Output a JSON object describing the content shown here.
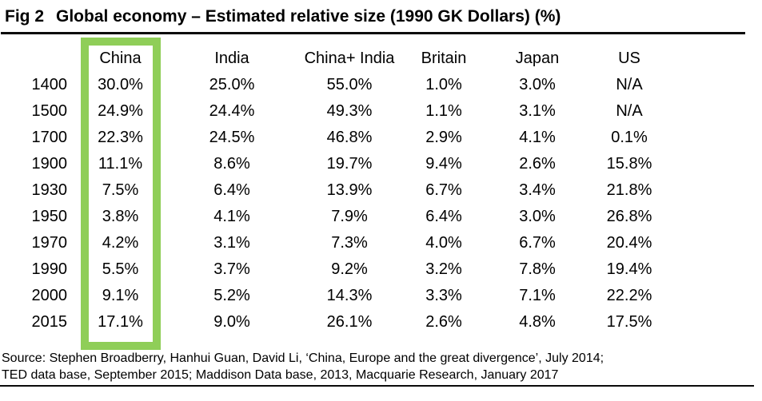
{
  "title": {
    "fig_label": "Fig 2",
    "text": "Global economy – Estimated relative size (1990 GK Dollars) (%)"
  },
  "highlight": {
    "color": "#8FCE58",
    "highlighted_column": "China"
  },
  "chart_data": {
    "type": "table",
    "title": "Global economy – Estimated relative size (1990 GK Dollars) (%)",
    "columns": [
      "",
      "China",
      "India",
      "China+ India",
      "Britain",
      "Japan",
      "US"
    ],
    "rows": [
      [
        "1400",
        "30.0%",
        "25.0%",
        "55.0%",
        "1.0%",
        "3.0%",
        "N/A"
      ],
      [
        "1500",
        "24.9%",
        "24.4%",
        "49.3%",
        "1.1%",
        "3.1%",
        "N/A"
      ],
      [
        "1700",
        "22.3%",
        "24.5%",
        "46.8%",
        "2.9%",
        "4.1%",
        "0.1%"
      ],
      [
        "1900",
        "11.1%",
        "8.6%",
        "19.7%",
        "9.4%",
        "2.6%",
        "15.8%"
      ],
      [
        "1930",
        "7.5%",
        "6.4%",
        "13.9%",
        "6.7%",
        "3.4%",
        "21.8%"
      ],
      [
        "1950",
        "3.8%",
        "4.1%",
        "7.9%",
        "6.4%",
        "3.0%",
        "26.8%"
      ],
      [
        "1970",
        "4.2%",
        "3.1%",
        "7.3%",
        "4.0%",
        "6.7%",
        "20.4%"
      ],
      [
        "1990",
        "5.5%",
        "3.7%",
        "9.2%",
        "3.2%",
        "7.8%",
        "19.4%"
      ],
      [
        "2000",
        "9.1%",
        "5.2%",
        "14.3%",
        "3.3%",
        "7.1%",
        "22.2%"
      ],
      [
        "2015",
        "17.1%",
        "9.0%",
        "26.1%",
        "2.6%",
        "4.8%",
        "17.5%"
      ]
    ]
  },
  "source": {
    "line1": "Source: Stephen Broadberry, Hanhui Guan, David Li, ‘China, Europe and the great divergence’, July 2014;",
    "line2": "TED data base, September 2015; Maddison Data base, 2013, Macquarie Research, January 2017"
  }
}
